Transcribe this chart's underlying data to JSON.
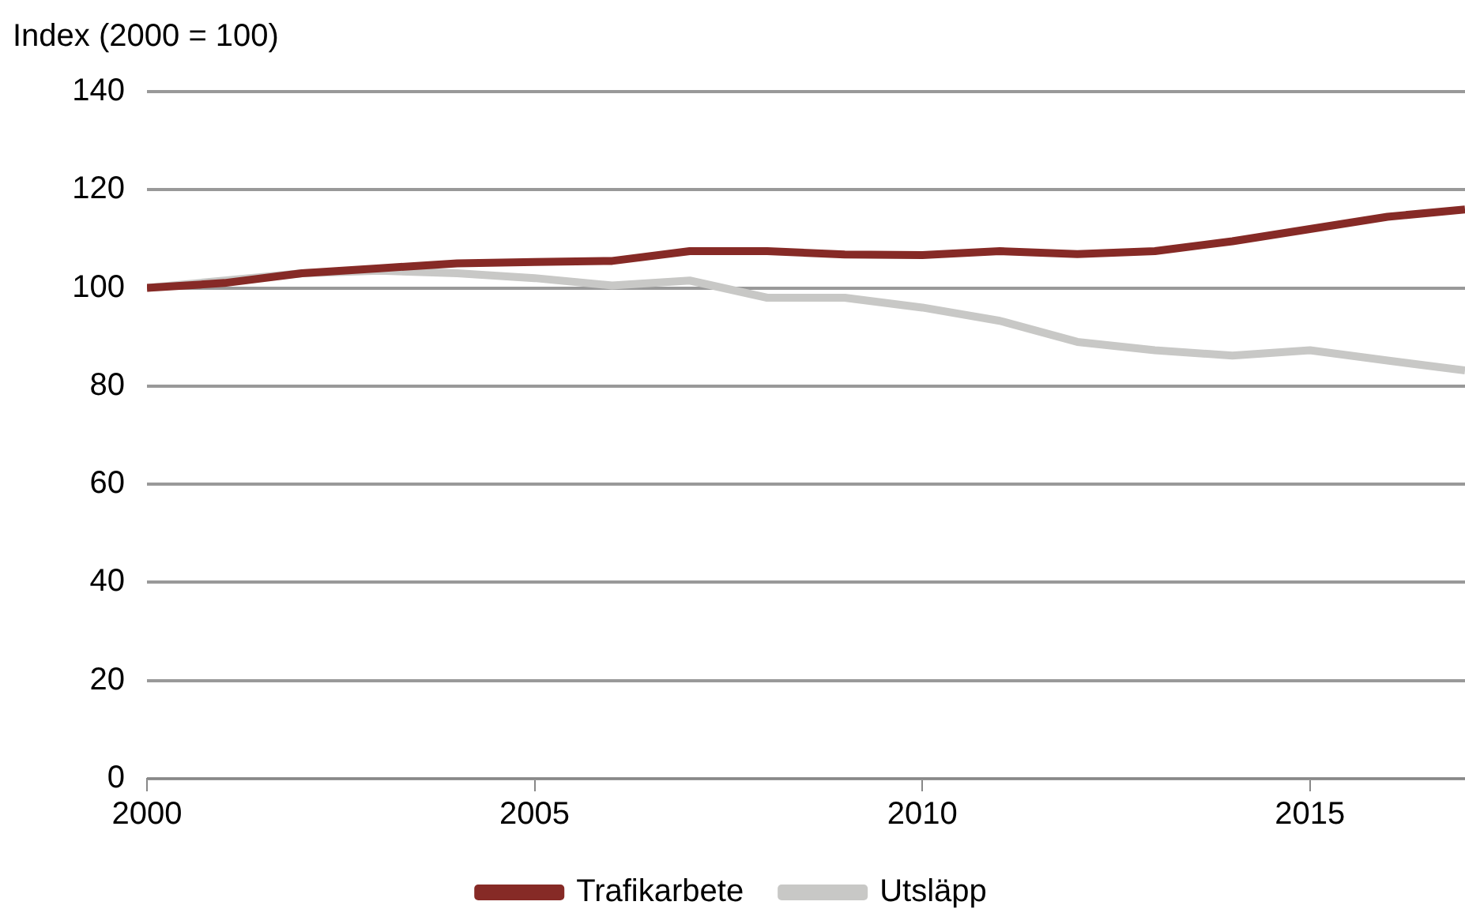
{
  "chart_data": {
    "type": "line",
    "ylabel": "Index (2000 = 100)",
    "x": [
      2000,
      2001,
      2002,
      2003,
      2004,
      2005,
      2006,
      2007,
      2008,
      2009,
      2010,
      2011,
      2012,
      2013,
      2014,
      2015,
      2016,
      2017
    ],
    "series": [
      {
        "name": "Trafikarbete",
        "color": "#862a26",
        "values": [
          100,
          101,
          103,
          104,
          105,
          105.3,
          105.5,
          107.5,
          107.5,
          106.8,
          106.7,
          107.5,
          106.9,
          107.5,
          109.5,
          112,
          114.5,
          116
        ]
      },
      {
        "name": "Utsläpp",
        "color": "#c8c8c6",
        "values": [
          100,
          101.5,
          103,
          103.5,
          103,
          102,
          100.5,
          101.5,
          98,
          98,
          96,
          93.3,
          89,
          87.3,
          86.2,
          87.3,
          85.2,
          83.2
        ]
      }
    ],
    "xlim": [
      2000,
      2017
    ],
    "xticks": [
      2000,
      2005,
      2010,
      2015
    ],
    "ylim": [
      0,
      140
    ],
    "yticks": [
      0,
      20,
      40,
      60,
      80,
      100,
      120,
      140
    ],
    "grid": "y",
    "legend": "bottom",
    "marker": "none",
    "line_style": "solid"
  }
}
